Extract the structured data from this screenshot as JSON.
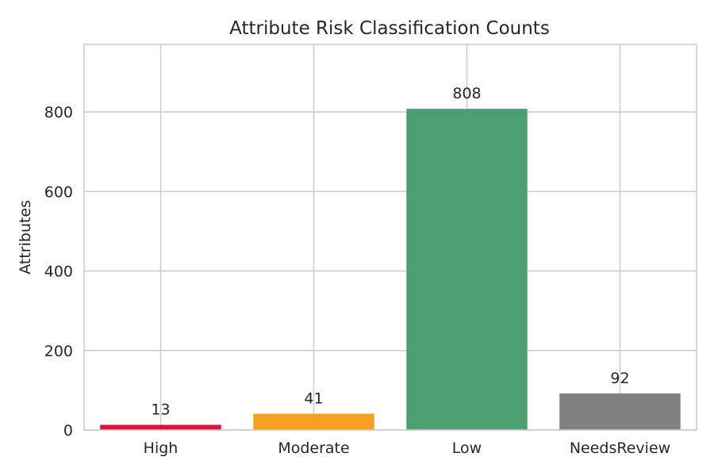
{
  "chart_data": {
    "type": "bar",
    "title": "Attribute Risk Classification Counts",
    "xlabel": "",
    "ylabel": "Attributes",
    "categories": [
      "High",
      "Moderate",
      "Low",
      "NeedsReview"
    ],
    "values": [
      13,
      41,
      808,
      92
    ],
    "data_labels": [
      "13",
      "41",
      "808",
      "92"
    ],
    "colors": [
      "#dc143c",
      "#f5a01f",
      "#4c9f70",
      "#808080"
    ],
    "ylim": [
      0,
      970
    ],
    "yticks": [
      0,
      200,
      400,
      600,
      800
    ],
    "ytick_labels": [
      "0",
      "200",
      "400",
      "600",
      "800"
    ],
    "grid": true,
    "legend": "none"
  }
}
